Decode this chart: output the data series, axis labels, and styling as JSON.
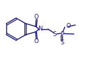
{
  "bg_color": "#ffffff",
  "line_color": "#1a1a8c",
  "lw": 1.0,
  "fs": 5.5,
  "xlim": [
    0,
    136
  ],
  "ylim": [
    0,
    85
  ]
}
